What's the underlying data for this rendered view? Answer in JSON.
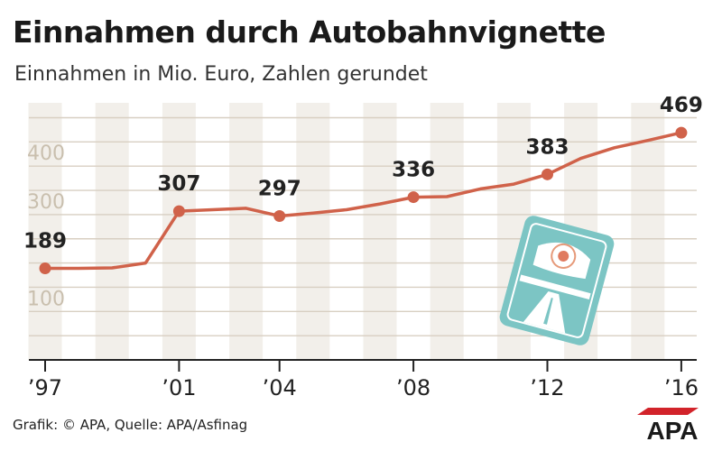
{
  "title": "Einnahmen durch Autobahnvignette",
  "subtitle": "Einnahmen in Mio. Euro, Zahlen gerundet",
  "footer": "Grafik: © APA, Quelle: APA/Asfinag",
  "brand": "APA",
  "colors": {
    "line": "#d0624a",
    "label": "#222222",
    "grid": "#d8cfc2",
    "band": "#f2efea",
    "tick": "#c9bfae",
    "axis": "#222222",
    "vignette": "#7cc5c4"
  },
  "chart_data": {
    "type": "line",
    "title": "Einnahmen durch Autobahnvignette",
    "ylabel": "Einnahmen in Mio. Euro",
    "x": [
      1997,
      1998,
      1999,
      2000,
      2001,
      2002,
      2003,
      2004,
      2005,
      2006,
      2007,
      2008,
      2009,
      2010,
      2011,
      2012,
      2013,
      2014,
      2015,
      2016
    ],
    "values": [
      189,
      189,
      190,
      200,
      307,
      310,
      313,
      297,
      303,
      310,
      322,
      336,
      337,
      353,
      363,
      383,
      416,
      438,
      453,
      469
    ],
    "highlighted": [
      {
        "year": 1997,
        "label": "189"
      },
      {
        "year": 2001,
        "label": "307"
      },
      {
        "year": 2004,
        "label": "297"
      },
      {
        "year": 2008,
        "label": "336"
      },
      {
        "year": 2012,
        "label": "383"
      },
      {
        "year": 2016,
        "label": "469"
      }
    ],
    "yticks": [
      100,
      300,
      400
    ],
    "ylim": [
      0,
      500
    ],
    "xticks": [
      {
        "year": 1997,
        "label": "’97"
      },
      {
        "year": 2001,
        "label": "’01"
      },
      {
        "year": 2004,
        "label": "’04"
      },
      {
        "year": 2008,
        "label": "’08"
      },
      {
        "year": 2012,
        "label": "’12"
      },
      {
        "year": 2016,
        "label": "’16"
      }
    ]
  }
}
